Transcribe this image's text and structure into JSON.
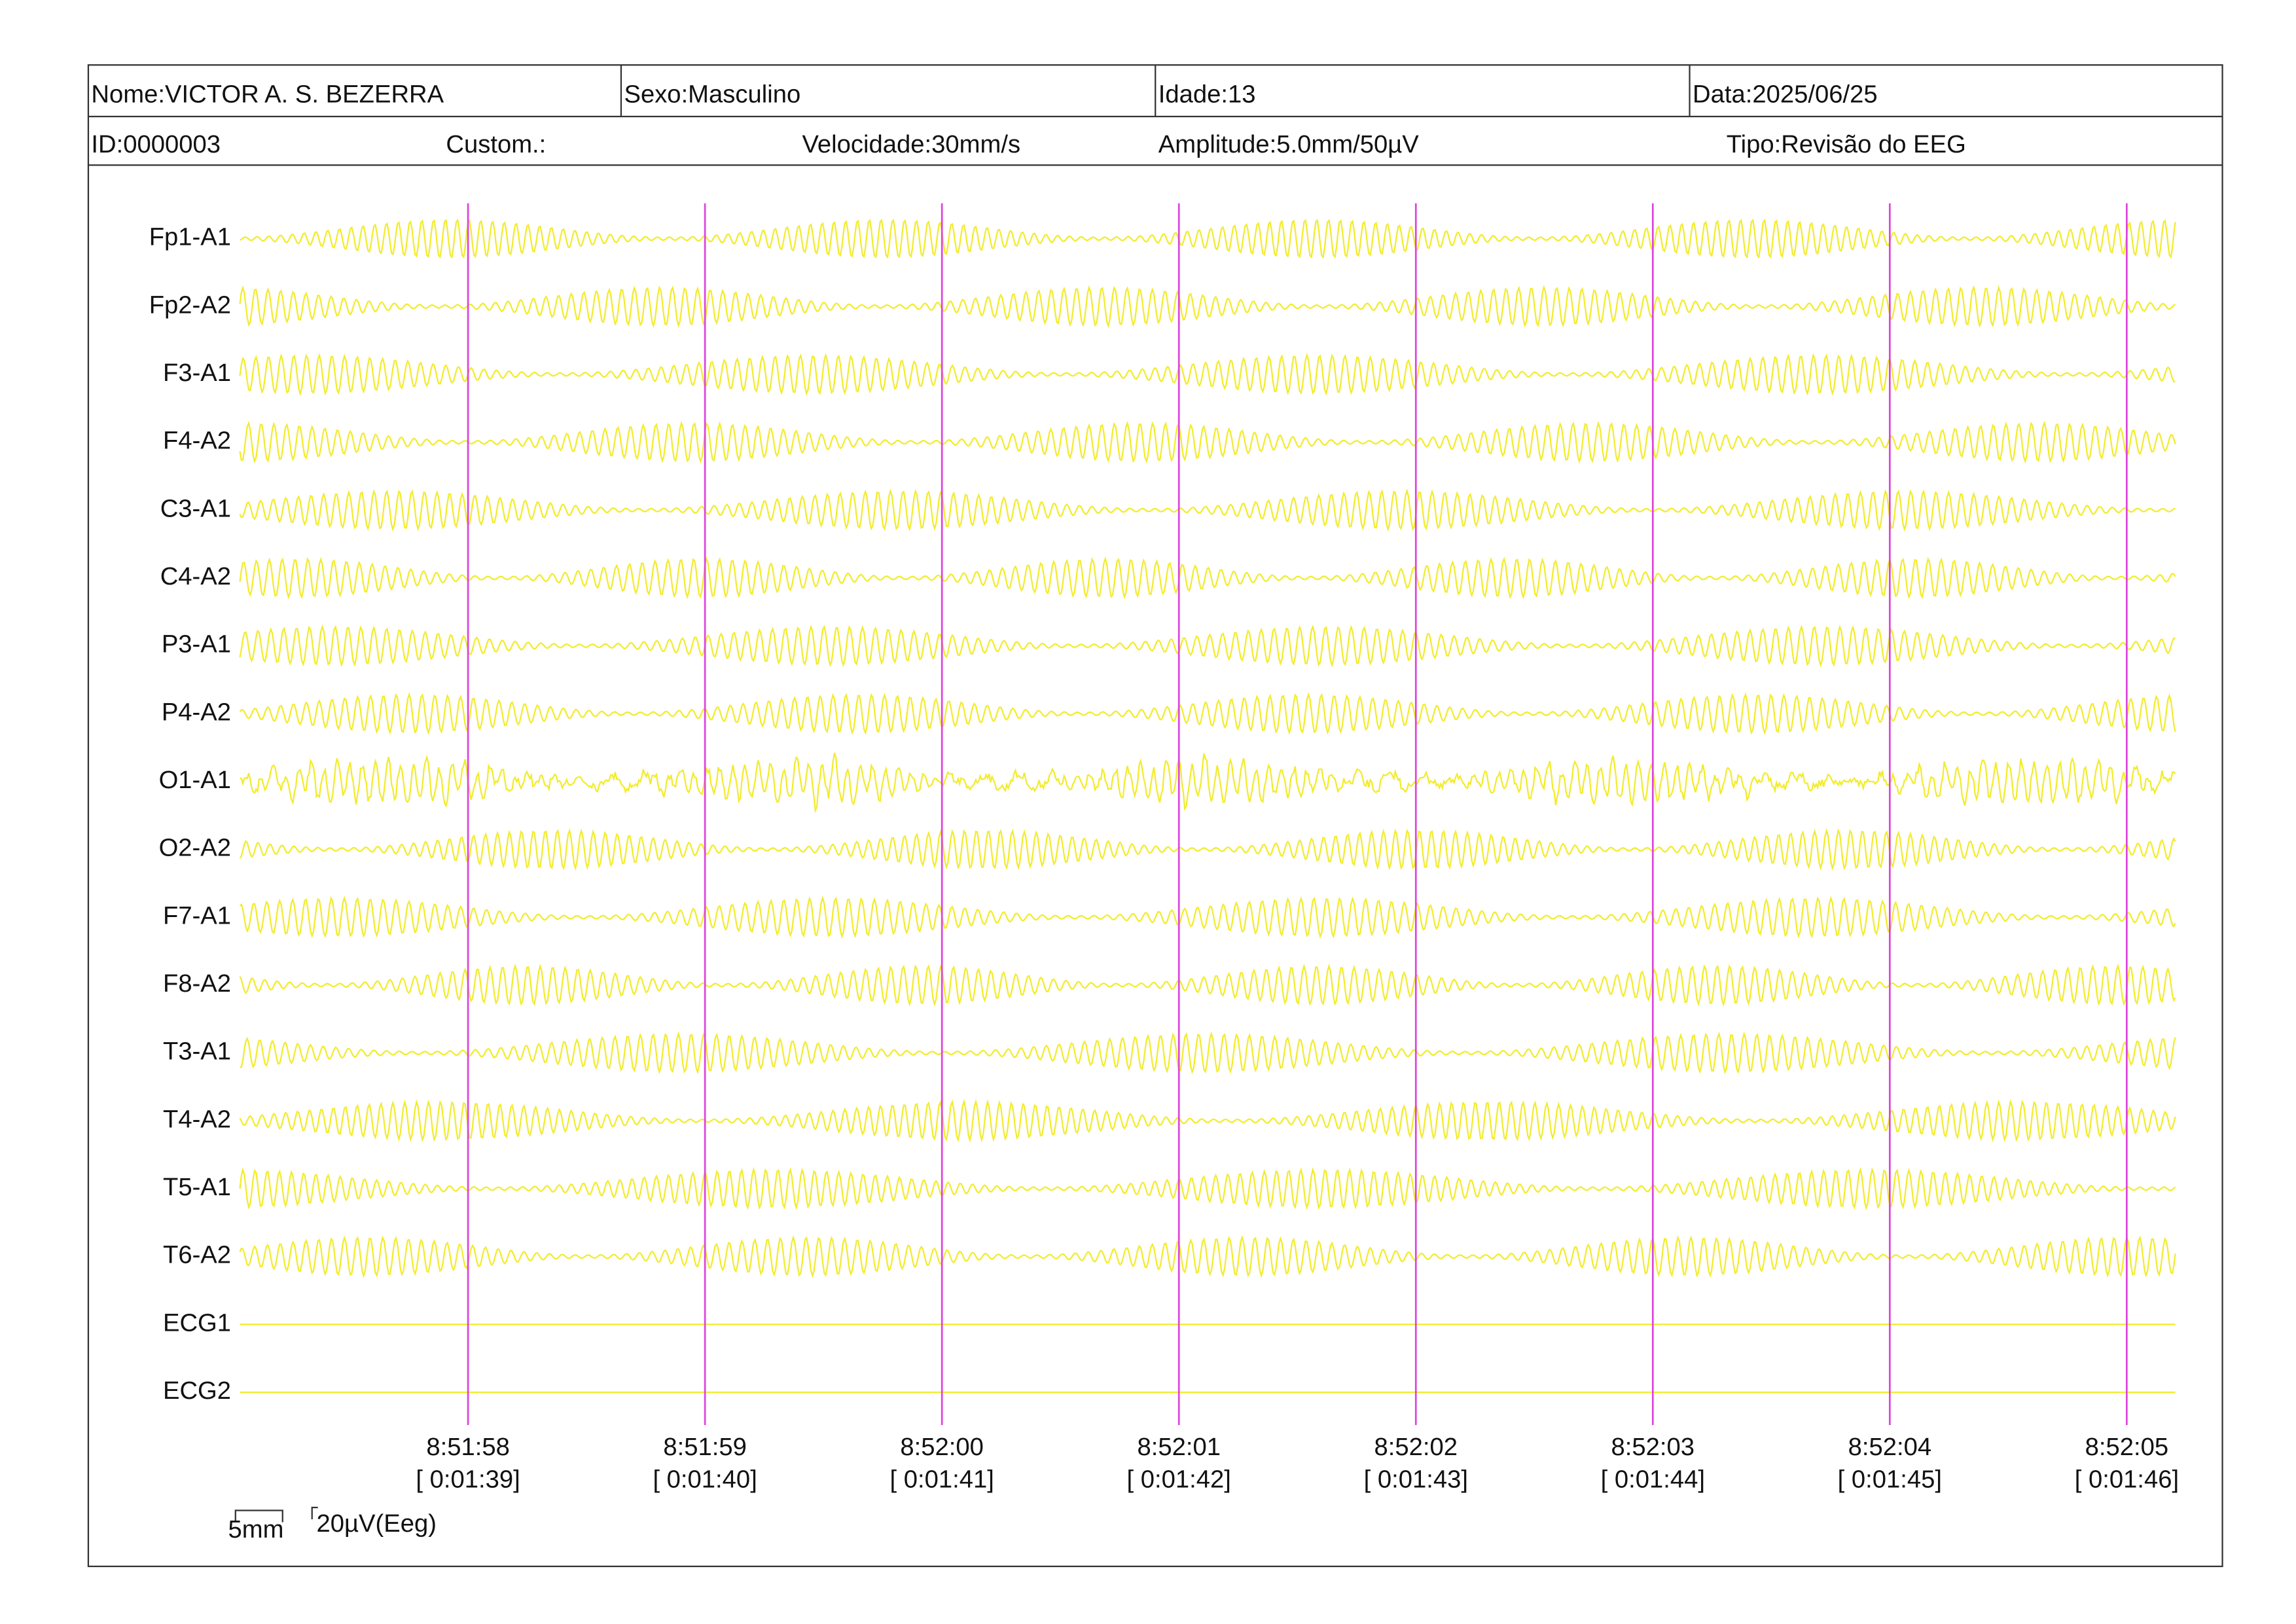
{
  "header": {
    "name": "Nome:VICTOR A. S. BEZERRA",
    "sex": "Sexo:Masculino",
    "age": "Idade:13",
    "date": "Data:2025/06/25",
    "id": "ID:0000003",
    "custom": "Custom.:",
    "speed": "Velocidade:30mm/s",
    "amplitude": "Amplitude:5.0mm/50µV",
    "type": "Tipo:Revisão do EEG"
  },
  "channels": [
    "Fp1-A1",
    "Fp2-A2",
    "F3-A1",
    "F4-A2",
    "C3-A1",
    "C4-A2",
    "P3-A1",
    "P4-A2",
    "O1-A1",
    "O2-A2",
    "F7-A1",
    "F8-A2",
    "T3-A1",
    "T4-A2",
    "T5-A1",
    "T6-A2",
    "ECG1",
    "ECG2"
  ],
  "markers": [
    {
      "time": "8:51:58",
      "elapsed": "[ 0:01:39]"
    },
    {
      "time": "8:51:59",
      "elapsed": "[ 0:01:40]"
    },
    {
      "time": "8:52:00",
      "elapsed": "[ 0:01:41]"
    },
    {
      "time": "8:52:01",
      "elapsed": "[ 0:01:42]"
    },
    {
      "time": "8:52:02",
      "elapsed": "[ 0:01:43]"
    },
    {
      "time": "8:52:03",
      "elapsed": "[ 0:01:44]"
    },
    {
      "time": "8:52:04",
      "elapsed": "[ 0:01:45]"
    },
    {
      "time": "8:52:05",
      "elapsed": "[ 0:01:46]"
    }
  ],
  "scale": {
    "width": "5mm",
    "amplitude": "20µV(Eeg)"
  }
}
